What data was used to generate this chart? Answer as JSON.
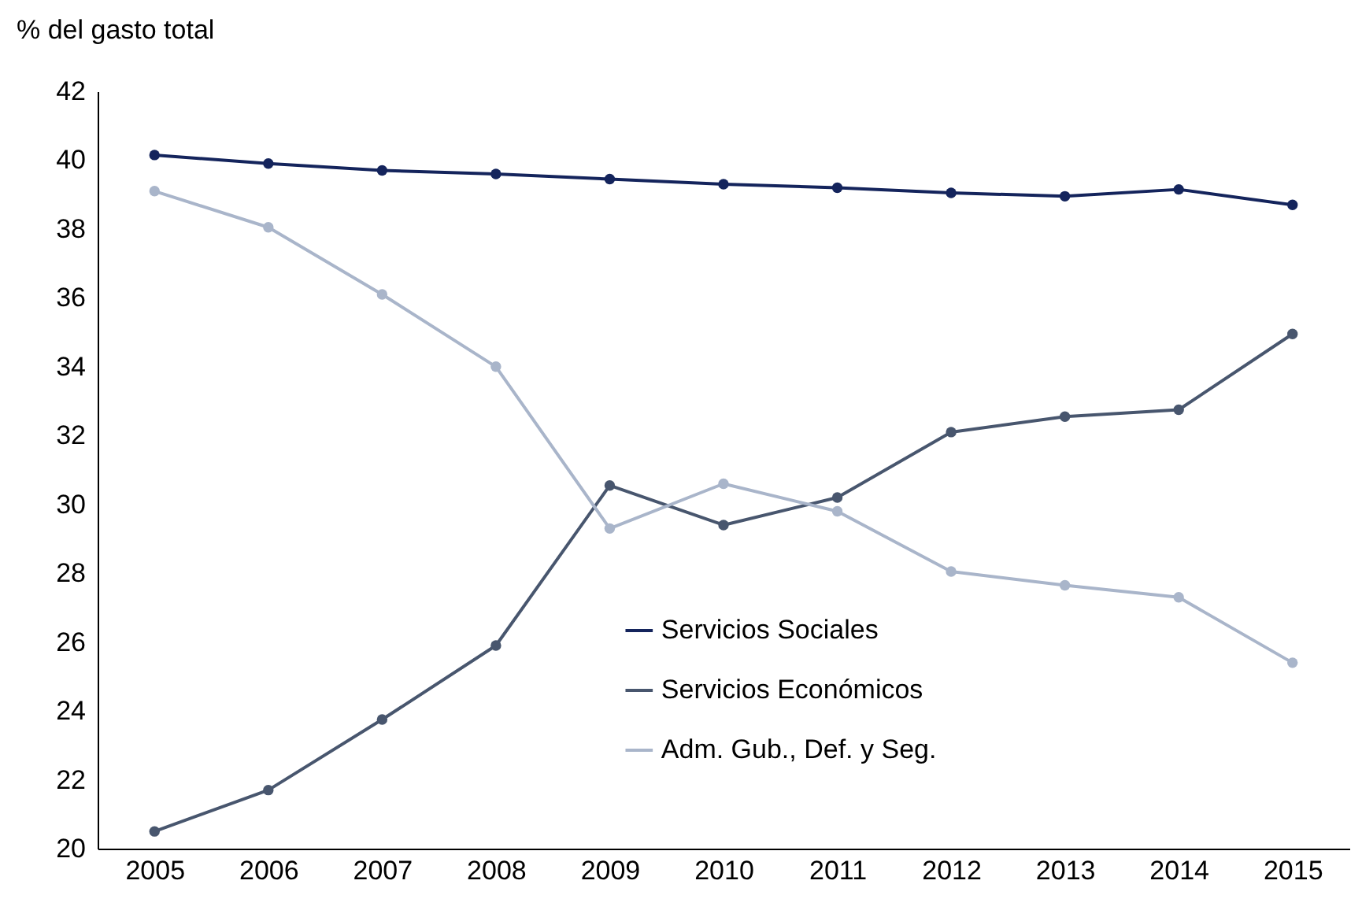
{
  "chart_data": {
    "type": "line",
    "ylabel": "% del gasto total",
    "categories": [
      "2005",
      "2006",
      "2007",
      "2008",
      "2009",
      "2010",
      "2011",
      "2012",
      "2013",
      "2014",
      "2015"
    ],
    "series": [
      {
        "name": "Servicios Sociales",
        "color": "#14245c",
        "values": [
          40.15,
          39.9,
          39.7,
          39.6,
          39.45,
          39.3,
          39.2,
          39.05,
          38.95,
          39.15,
          38.7
        ]
      },
      {
        "name": "Servicios Económicos",
        "color": "#48566e",
        "values": [
          20.5,
          21.7,
          23.75,
          25.9,
          30.55,
          29.4,
          30.2,
          32.1,
          32.55,
          32.75,
          34.95
        ]
      },
      {
        "name": "Adm. Gub., Def. y Seg.",
        "color": "#a9b5ca",
        "values": [
          39.1,
          38.05,
          36.1,
          34.0,
          29.3,
          30.6,
          29.8,
          28.05,
          27.65,
          27.3,
          25.4
        ]
      }
    ],
    "ylim": [
      20,
      42
    ],
    "yticks": [
      20,
      22,
      24,
      26,
      28,
      30,
      32,
      34,
      36,
      38,
      40,
      42
    ],
    "grid": false,
    "legend": "bottom",
    "marker": "circle",
    "line_style": "solid"
  }
}
